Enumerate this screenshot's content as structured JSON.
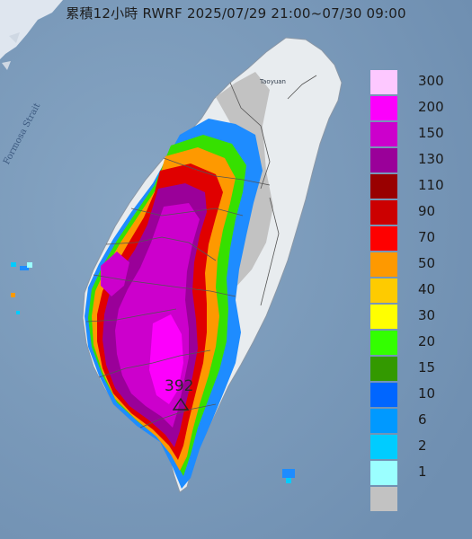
{
  "title": "累積12小時 RWRF 2025/07/29 21:00~07/30 09:00",
  "map_labels": {
    "strait": "Formosa Strait",
    "city": "Taoyuan"
  },
  "max_value": "392",
  "legend": {
    "levels": [
      {
        "label": "300",
        "color": "#fdc8ff"
      },
      {
        "label": "200",
        "color": "#fc00fc"
      },
      {
        "label": "150",
        "color": "#cc00cc"
      },
      {
        "label": "130",
        "color": "#9a0099"
      },
      {
        "label": "110",
        "color": "#990000"
      },
      {
        "label": "90",
        "color": "#cc0000"
      },
      {
        "label": "70",
        "color": "#fe0000"
      },
      {
        "label": "50",
        "color": "#fe9900"
      },
      {
        "label": "40",
        "color": "#fecb00"
      },
      {
        "label": "30",
        "color": "#ffff00"
      },
      {
        "label": "20",
        "color": "#33ff00"
      },
      {
        "label": "15",
        "color": "#339900"
      },
      {
        "label": "10",
        "color": "#0066ff"
      },
      {
        "label": "6",
        "color": "#0099ff"
      },
      {
        "label": "2",
        "color": "#00ccff"
      },
      {
        "label": "1",
        "color": "#9bffff"
      },
      {
        "label": "",
        "color": "#c2c2c2"
      }
    ]
  }
}
